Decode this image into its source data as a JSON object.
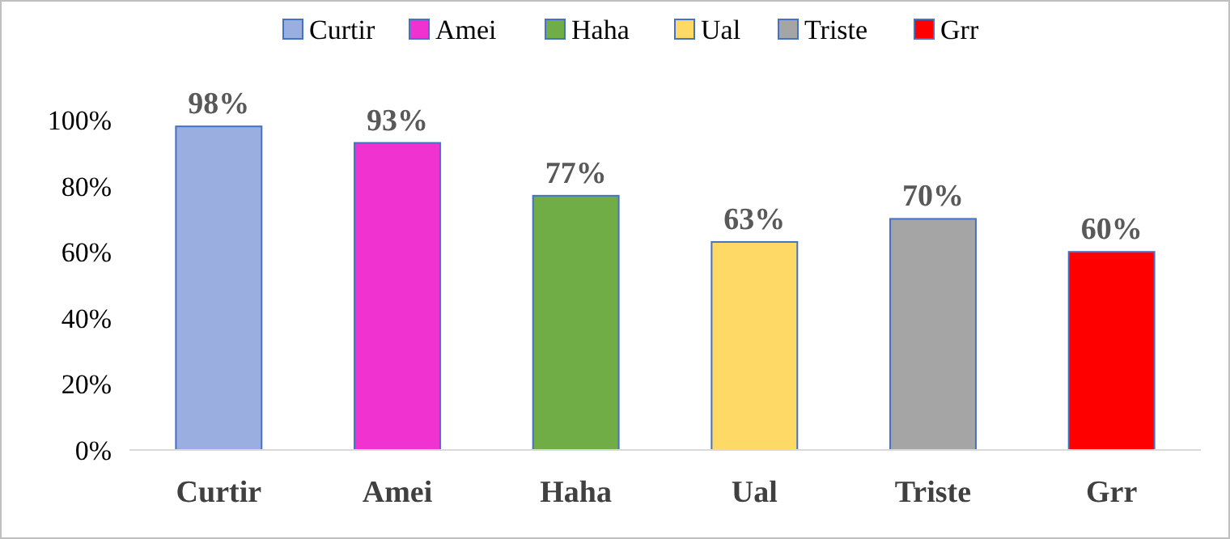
{
  "chart_data": {
    "type": "bar",
    "categories": [
      "Curtir",
      "Amei",
      "Haha",
      "Ual",
      "Triste",
      "Grr"
    ],
    "stacked": true,
    "series": [
      {
        "name": "Curtir",
        "color": "#9aaee0",
        "values": [
          98,
          null,
          null,
          null,
          null,
          null
        ],
        "value_labels": [
          "98%",
          null,
          null,
          null,
          null,
          null
        ]
      },
      {
        "name": "Amei",
        "color": "#f032d0",
        "values": [
          null,
          93,
          null,
          null,
          null,
          null
        ],
        "value_labels": [
          null,
          "93%",
          null,
          null,
          null,
          null
        ]
      },
      {
        "name": "Haha",
        "color": "#70ad47",
        "values": [
          null,
          null,
          77,
          null,
          null,
          null
        ],
        "value_labels": [
          null,
          null,
          "77%",
          null,
          null,
          null
        ]
      },
      {
        "name": "Ual",
        "color": "#ffd966",
        "values": [
          null,
          null,
          null,
          63,
          null,
          null
        ],
        "value_labels": [
          null,
          null,
          null,
          "63%",
          null,
          null
        ]
      },
      {
        "name": "Triste",
        "color": "#a5a5a5",
        "values": [
          null,
          null,
          null,
          null,
          70,
          null
        ],
        "value_labels": [
          null,
          null,
          null,
          null,
          "70%",
          null
        ]
      },
      {
        "name": "Grr",
        "color": "#ff0000",
        "values": [
          null,
          null,
          null,
          null,
          null,
          60
        ],
        "value_labels": [
          null,
          null,
          null,
          null,
          null,
          "60%"
        ]
      }
    ],
    "ylim": [
      0,
      100
    ],
    "yticks": [
      {
        "value": 0,
        "label": "0%"
      },
      {
        "value": 20,
        "label": "20%"
      },
      {
        "value": 40,
        "label": "40%"
      },
      {
        "value": 60,
        "label": "60%"
      },
      {
        "value": 80,
        "label": "80%"
      },
      {
        "value": 100,
        "label": "100%"
      }
    ],
    "grid": false,
    "legend": "top"
  }
}
